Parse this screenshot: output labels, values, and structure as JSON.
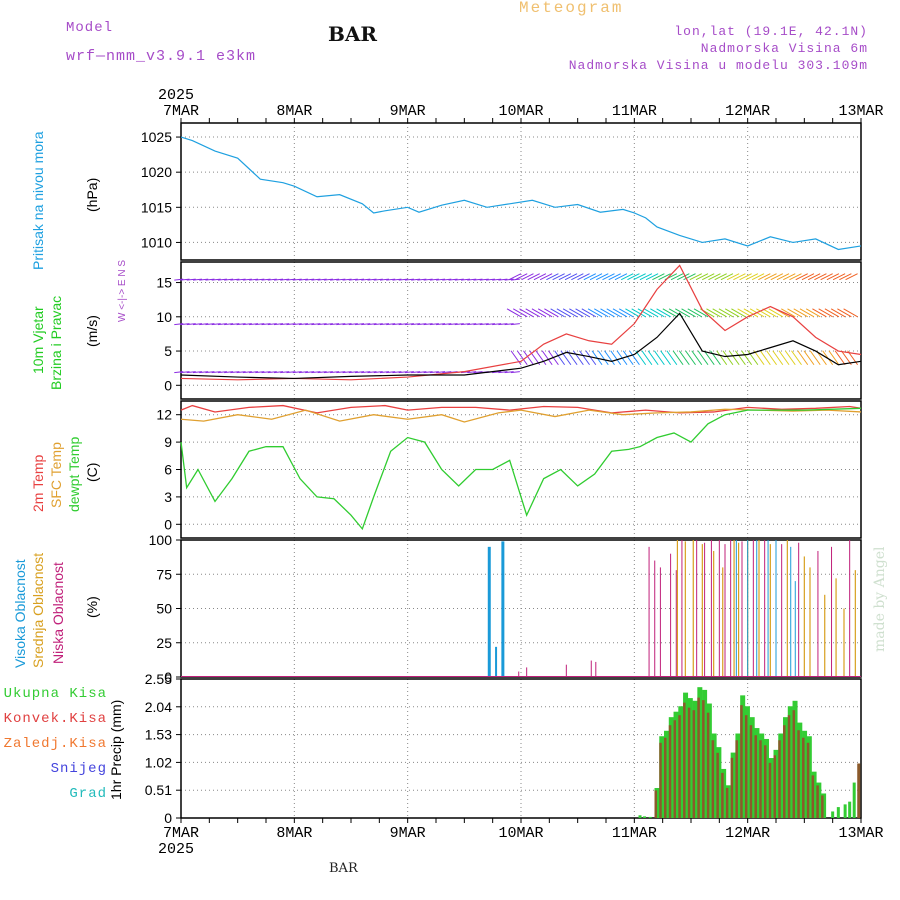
{
  "header": {
    "model_label": "Model",
    "model_name": "wrf—nmm_v3.9.1  e3km",
    "title": "BAR",
    "meteogram": "Meteogram",
    "lonlat": "lon,lat (19.1E, 42.1N)",
    "altitude": "Nadmorska Visina 6m",
    "model_altitude": "Nadmorska Visina u modelu 303.109m",
    "footer_station": "BAR",
    "credit": "made by Angel"
  },
  "colors": {
    "pressure": "#1ea0e0",
    "wind_green": "#22cc22",
    "temp2m": "#e84040",
    "sfc": "#e0a030",
    "dewpt": "#30cc30",
    "high": "#1a9ad8",
    "mid": "#d8a020",
    "low": "#c0207a",
    "purple": "#a64cc8",
    "rain_total": "#33cc33",
    "conv": "#e04040",
    "frozen": "#f07830",
    "snow": "#4444dd",
    "grad": "#22bbbb"
  },
  "chart_data": {
    "type": "meteogram",
    "year": "2025",
    "time_ticks": [
      "7MAR",
      "8MAR",
      "9MAR",
      "10MAR",
      "11MAR",
      "12MAR",
      "13MAR"
    ],
    "panels": [
      {
        "id": "pressure",
        "type": "line",
        "ylabel_lines": [
          "Pritisak na nivou mora",
          "(hPa)"
        ],
        "ylim": [
          1007.5,
          1027
        ],
        "yticks": [
          "1010",
          "1015",
          "1020",
          "1025"
        ],
        "x": [
          0,
          0.1,
          0.3,
          0.5,
          0.7,
          0.9,
          1.0,
          1.2,
          1.4,
          1.6,
          1.7,
          1.8,
          2.0,
          2.1,
          2.3,
          2.5,
          2.7,
          2.9,
          3.1,
          3.3,
          3.5,
          3.7,
          3.9,
          4.0,
          4.1,
          4.2,
          4.4,
          4.6,
          4.8,
          5.0,
          5.2,
          5.4,
          5.6,
          5.8,
          6.0
        ],
        "values": [
          1025,
          1024.5,
          1023,
          1022,
          1019,
          1018.5,
          1018,
          1016.5,
          1016.8,
          1015.5,
          1014.2,
          1014.5,
          1015,
          1014.3,
          1015.3,
          1016,
          1015,
          1015.5,
          1016,
          1015,
          1015.4,
          1014.3,
          1014.7,
          1014.2,
          1013.5,
          1012.2,
          1011,
          1010,
          1010.5,
          1009.5,
          1010.8,
          1010,
          1010.5,
          1009,
          1009.5
        ]
      },
      {
        "id": "wind",
        "type": "line+barbs",
        "ylabel_lines": [
          "10m Vjetar",
          "Brzina i Pravac",
          "(m/s)"
        ],
        "compass": "W <-|-> E  N  S",
        "ylim": [
          -2,
          18
        ],
        "yticks": [
          "0",
          "5",
          "10",
          "15"
        ],
        "series": [
          {
            "name": "speed",
            "x": [
              0,
              0.5,
              1,
              1.5,
              2,
              2.5,
              3,
              3.2,
              3.4,
              3.6,
              3.8,
              4.0,
              4.2,
              4.4,
              4.6,
              4.8,
              5.0,
              5.2,
              5.4,
              5.6,
              5.8,
              6.0
            ],
            "values": [
              1.5,
              1.2,
              1,
              1.3,
              1.5,
              1.5,
              2.5,
              3.5,
              4.8,
              4.2,
              3.5,
              4.5,
              7,
              10.5,
              5,
              4.2,
              4.5,
              5.5,
              6.5,
              5,
              3,
              3.5
            ]
          },
          {
            "name": "gust",
            "x": [
              0,
              0.5,
              1,
              1.5,
              2,
              2.5,
              3,
              3.2,
              3.4,
              3.6,
              3.8,
              4.0,
              4.2,
              4.4,
              4.6,
              4.8,
              5.0,
              5.2,
              5.4,
              5.6,
              5.8,
              6.0
            ],
            "values": [
              1,
              0.8,
              1,
              0.8,
              1.2,
              2,
              3.5,
              6,
              7.5,
              6.5,
              6,
              9,
              14,
              17.5,
              11,
              8,
              10,
              11.5,
              10,
              7,
              5,
              4.5
            ]
          }
        ]
      },
      {
        "id": "temp",
        "type": "line",
        "ylabel_lines": [
          "2m Temp",
          "SFC Temp",
          "dewpt Temp",
          "(C)"
        ],
        "ylim": [
          -1.5,
          13.5
        ],
        "yticks": [
          "0",
          "3",
          "6",
          "9",
          "12"
        ],
        "series": [
          {
            "name": "2m Temp",
            "x": [
              0,
              0.1,
              0.3,
              0.6,
              0.9,
              1.2,
              1.5,
              1.8,
              2.0,
              2.3,
              2.6,
              2.9,
              3.2,
              3.5,
              3.8,
              4.1,
              4.4,
              4.7,
              5.0,
              5.3,
              5.6,
              5.9,
              6.0
            ],
            "values": [
              12.5,
              13,
              12.3,
              12.8,
              13,
              12.2,
              12.8,
              13,
              12.5,
              12.8,
              12.8,
              12.5,
              12.9,
              12.8,
              12.2,
              12.5,
              12.2,
              12.3,
              12.8,
              12.6,
              12.7,
              12.9,
              12.7
            ]
          },
          {
            "name": "SFC Temp",
            "x": [
              0,
              0.2,
              0.5,
              0.8,
              1.1,
              1.4,
              1.7,
              2.0,
              2.3,
              2.5,
              2.8,
              3.0,
              3.3,
              3.6,
              3.9,
              4.2,
              4.5,
              4.8,
              5.1,
              5.4,
              5.7,
              6.0
            ],
            "values": [
              11.5,
              11.3,
              12,
              11.5,
              12.5,
              11.3,
              12,
              11.5,
              12,
              11.2,
              12.2,
              12.5,
              11.8,
              12.5,
              12,
              12.2,
              12.3,
              12.6,
              12.5,
              12.4,
              12.5,
              12.3
            ]
          },
          {
            "name": "dewpt Temp",
            "x": [
              0,
              0.05,
              0.15,
              0.3,
              0.45,
              0.6,
              0.75,
              0.9,
              1.05,
              1.2,
              1.35,
              1.5,
              1.6,
              1.7,
              1.85,
              2.0,
              2.15,
              2.3,
              2.45,
              2.6,
              2.75,
              2.9,
              3.05,
              3.2,
              3.35,
              3.5,
              3.65,
              3.8,
              3.95,
              4.05,
              4.2,
              4.35,
              4.5,
              4.65,
              4.8,
              5.0,
              5.5,
              6.0
            ],
            "values": [
              9,
              4,
              6,
              2.5,
              5,
              8,
              8.5,
              8.5,
              5,
              3,
              2.8,
              1,
              -0.5,
              3,
              8,
              9.5,
              9,
              6,
              4.2,
              6,
              6,
              7,
              1,
              5,
              6,
              4.2,
              5.5,
              8,
              8.2,
              8.5,
              9.5,
              10,
              9,
              11,
              12,
              12.5,
              12.5,
              12.7
            ]
          }
        ]
      },
      {
        "id": "cloud",
        "type": "bar",
        "ylabel_lines": [
          "Visoka Oblacnost",
          "Srednja Oblacnost",
          "Niska Oblacnost",
          "(%)"
        ],
        "ylim": [
          0,
          100
        ],
        "yticks": [
          "0",
          "25",
          "50",
          "75",
          "100"
        ]
      },
      {
        "id": "precip",
        "type": "bar",
        "ylabel": "1hr Precip (mm)",
        "ylim": [
          0,
          2.55
        ],
        "yticks": [
          "0",
          "0.51",
          "1.02",
          "1.53",
          "2.04",
          "2.55"
        ],
        "legend": [
          "Ukupna Kisa",
          "Konvek.Kisa",
          "Zaledj.Kisa",
          "Snijeg",
          "Grad"
        ]
      }
    ]
  }
}
